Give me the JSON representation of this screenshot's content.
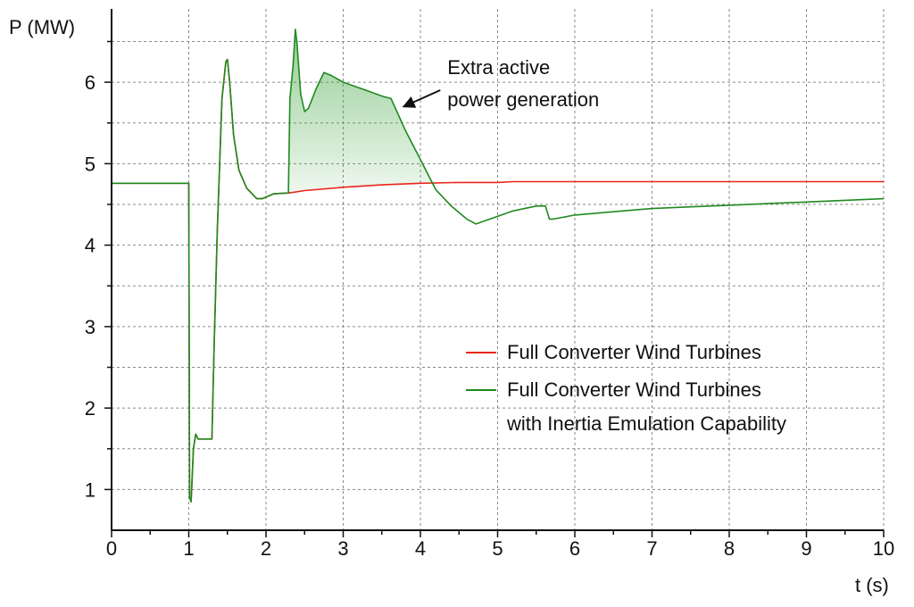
{
  "chart_data": {
    "type": "line",
    "xlabel": "t (s)",
    "ylabel": "P (MW)",
    "xlim": [
      0,
      10
    ],
    "ylim": [
      0.5,
      6.9
    ],
    "xticks": [
      0,
      1,
      2,
      3,
      4,
      5,
      6,
      7,
      8,
      9,
      10
    ],
    "yticks": [
      1,
      2,
      3,
      4,
      5,
      6
    ],
    "grid": true,
    "legend_position": "bottom-right",
    "series": [
      {
        "name": "Full Converter Wind Turbines",
        "color": "#e8261c",
        "points": [
          [
            0,
            4.76
          ],
          [
            1.0,
            4.76
          ],
          [
            1.01,
            0.9
          ],
          [
            1.03,
            0.85
          ],
          [
            1.06,
            1.5
          ],
          [
            1.09,
            1.68
          ],
          [
            1.12,
            1.62
          ],
          [
            1.3,
            1.62
          ],
          [
            1.33,
            2.8
          ],
          [
            1.37,
            4.2
          ],
          [
            1.43,
            5.8
          ],
          [
            1.48,
            6.25
          ],
          [
            1.5,
            6.28
          ],
          [
            1.53,
            6.0
          ],
          [
            1.58,
            5.35
          ],
          [
            1.65,
            4.92
          ],
          [
            1.75,
            4.7
          ],
          [
            1.88,
            4.57
          ],
          [
            1.95,
            4.57
          ],
          [
            2.1,
            4.63
          ],
          [
            2.3,
            4.64
          ],
          [
            2.5,
            4.67
          ],
          [
            3.0,
            4.71
          ],
          [
            3.5,
            4.74
          ],
          [
            4.0,
            4.76
          ],
          [
            4.5,
            4.77
          ],
          [
            5.0,
            4.77
          ],
          [
            5.2,
            4.78
          ],
          [
            6.0,
            4.78
          ],
          [
            8.0,
            4.78
          ],
          [
            10.0,
            4.78
          ]
        ]
      },
      {
        "name": "Full Converter Wind Turbines with Inertia Emulation Capability",
        "color": "#1f8a1f",
        "points": [
          [
            0,
            4.76
          ],
          [
            1.0,
            4.76
          ],
          [
            1.01,
            0.9
          ],
          [
            1.03,
            0.85
          ],
          [
            1.06,
            1.5
          ],
          [
            1.09,
            1.68
          ],
          [
            1.12,
            1.62
          ],
          [
            1.3,
            1.62
          ],
          [
            1.33,
            2.8
          ],
          [
            1.37,
            4.2
          ],
          [
            1.43,
            5.8
          ],
          [
            1.48,
            6.25
          ],
          [
            1.5,
            6.28
          ],
          [
            1.53,
            6.0
          ],
          [
            1.58,
            5.35
          ],
          [
            1.65,
            4.92
          ],
          [
            1.75,
            4.7
          ],
          [
            1.88,
            4.57
          ],
          [
            1.95,
            4.57
          ],
          [
            2.1,
            4.63
          ],
          [
            2.29,
            4.64
          ],
          [
            2.31,
            5.8
          ],
          [
            2.35,
            6.2
          ],
          [
            2.38,
            6.65
          ],
          [
            2.4,
            6.5
          ],
          [
            2.45,
            5.85
          ],
          [
            2.5,
            5.64
          ],
          [
            2.55,
            5.68
          ],
          [
            2.65,
            5.92
          ],
          [
            2.75,
            6.12
          ],
          [
            2.85,
            6.08
          ],
          [
            3.0,
            6.0
          ],
          [
            3.3,
            5.9
          ],
          [
            3.5,
            5.83
          ],
          [
            3.62,
            5.8
          ],
          [
            3.8,
            5.42
          ],
          [
            4.0,
            5.05
          ],
          [
            4.2,
            4.68
          ],
          [
            4.4,
            4.48
          ],
          [
            4.6,
            4.32
          ],
          [
            4.72,
            4.26
          ],
          [
            4.9,
            4.32
          ],
          [
            5.2,
            4.42
          ],
          [
            5.5,
            4.48
          ],
          [
            5.62,
            4.48
          ],
          [
            5.67,
            4.32
          ],
          [
            5.72,
            4.32
          ],
          [
            6.0,
            4.37
          ],
          [
            6.5,
            4.41
          ],
          [
            7.0,
            4.45
          ],
          [
            7.5,
            4.47
          ],
          [
            8.0,
            4.49
          ],
          [
            8.5,
            4.51
          ],
          [
            9.0,
            4.53
          ],
          [
            9.5,
            4.55
          ],
          [
            10.0,
            4.57
          ]
        ]
      }
    ],
    "annotations": [
      {
        "lines": [
          "Extra active",
          "power generation"
        ],
        "text_at": [
          4.35,
          6.1
        ],
        "arrow_to": [
          3.78,
          5.7
        ]
      }
    ]
  }
}
